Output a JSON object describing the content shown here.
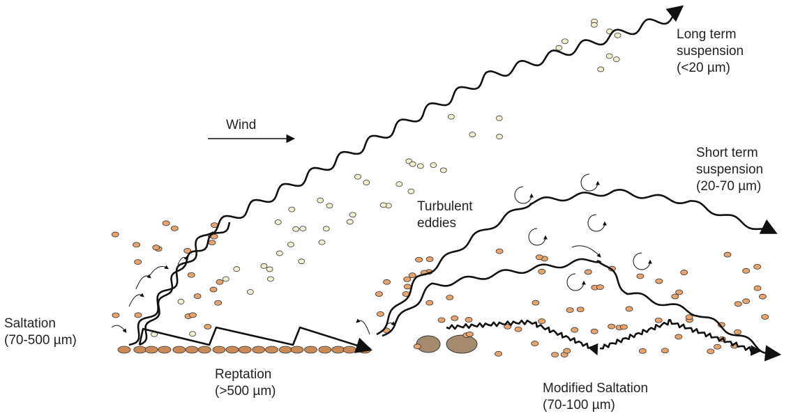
{
  "labels": {
    "long_term": [
      "Long term",
      "suspension",
      "(<20 µm)"
    ],
    "wind": [
      "Wind"
    ],
    "short_term": [
      "Short term",
      "suspension",
      "(20-70 µm)"
    ],
    "turbulent": [
      "Turbulent",
      "eddies"
    ],
    "saltation": [
      "Saltation",
      "(70-500 µm)"
    ],
    "reptation": [
      "Reptation",
      "(>500 µm)"
    ],
    "modified": [
      "Modified Saltation",
      "(70-100 µm)"
    ]
  }
}
